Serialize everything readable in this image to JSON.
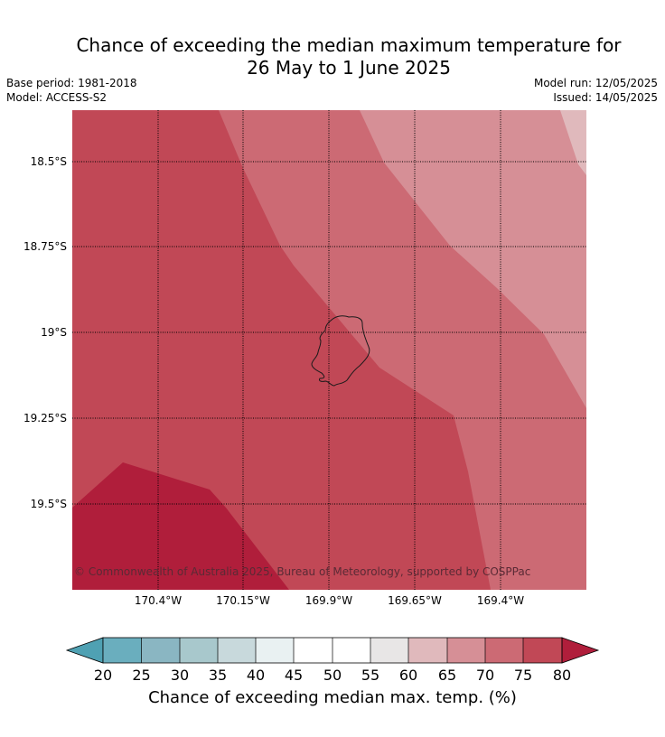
{
  "title": {
    "line1": "Chance of exceeding the median maximum temperature for",
    "line2": "26 May to 1 June 2025"
  },
  "meta": {
    "base_period": "Base period: 1981-2018",
    "model": "Model: ACCESS-S2",
    "model_run": "Model run: 12/05/2025",
    "issued": "Issued: 14/05/2025"
  },
  "map": {
    "latitude_labels": [
      "18.5°S",
      "18.75°S",
      "19°S",
      "19.25°S",
      "19.5°S"
    ],
    "longitude_labels": [
      "170.4°W",
      "170.15°W",
      "169.9°W",
      "169.65°W",
      "169.4°W"
    ],
    "copyright": "© Commonwealth of Australia 2025, Bureau of Meteorology, supported by COSPPac",
    "colors": {
      "band_80_plus": "#b01e3b",
      "band_75_80": "#c14856",
      "band_70_75": "#cc6a74",
      "band_65_70": "#d68f96",
      "band_60_65": "#e0b9bc"
    }
  },
  "colorbar": {
    "ticks": [
      "20",
      "25",
      "30",
      "35",
      "40",
      "45",
      "50",
      "55",
      "60",
      "65",
      "70",
      "75",
      "80"
    ],
    "label": "Chance of exceeding median max. temp. (%)",
    "under_color": "#4fa1b3",
    "over_color": "#b01e3b",
    "colors": [
      "#6aaebe",
      "#8ab6c2",
      "#a8c8cc",
      "#c8d9dc",
      "#e9f1f2",
      "#ffffff",
      "#ffffff",
      "#e8e6e6",
      "#e0b9bc",
      "#d68f96",
      "#cc6a74",
      "#c14856"
    ]
  }
}
